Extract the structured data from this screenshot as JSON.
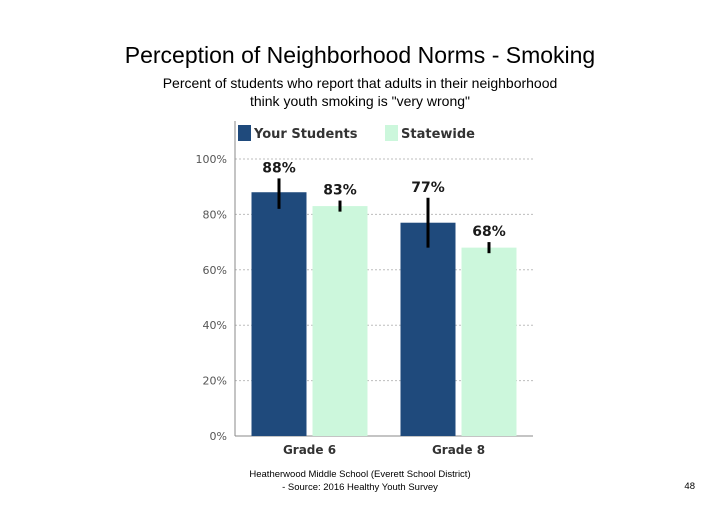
{
  "slide": {
    "title": "Perception of Neighborhood Norms - Smoking",
    "subtitle_line1": "Percent of students who report that adults in their neighborhood",
    "subtitle_line2": "think youth smoking is \"very wrong\"",
    "footer_line1": "Heatherwood Middle School (Everett School District)",
    "footer_line2": "- Source: 2016 Healthy Youth Survey",
    "page_number": "48"
  },
  "chart_data": {
    "type": "bar",
    "categories": [
      "Grade 6",
      "Grade 8"
    ],
    "series": [
      {
        "name": "Your Students",
        "color": "#1f4a7c",
        "values": [
          88,
          77
        ],
        "labels": [
          "88%",
          "77%"
        ],
        "error_low": [
          82,
          68
        ],
        "error_high": [
          93,
          86
        ]
      },
      {
        "name": "Statewide",
        "color": "#ccf7dc",
        "values": [
          83,
          68
        ],
        "labels": [
          "83%",
          "68%"
        ],
        "error_low": [
          81,
          66
        ],
        "error_high": [
          85,
          70
        ]
      }
    ],
    "y_ticks": [
      "0%",
      "20%",
      "40%",
      "60%",
      "80%",
      "100%"
    ],
    "ylim": [
      0,
      100
    ],
    "grid": true,
    "legend_position": "top"
  }
}
